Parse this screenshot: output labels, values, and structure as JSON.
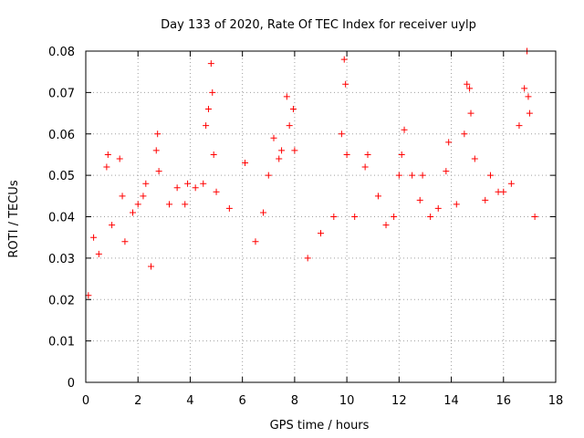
{
  "chart_data": {
    "type": "scatter",
    "title": "Day 133 of 2020, Rate Of TEC Index for receiver uylp",
    "xlabel": "GPS time / hours",
    "ylabel": "ROTI / TECUs",
    "xlim": [
      0,
      18
    ],
    "ylim": [
      0,
      0.08
    ],
    "x_ticks": [
      "0",
      "2",
      "4",
      "6",
      "8",
      "10",
      "12",
      "14",
      "16",
      "18"
    ],
    "y_ticks": [
      "0",
      "0.01",
      "0.02",
      "0.03",
      "0.04",
      "0.05",
      "0.06",
      "0.07",
      "0.08"
    ],
    "grid": true,
    "marker": "+",
    "color": "#ff0000",
    "series": [
      {
        "name": "ROTI",
        "x": [
          0.1,
          0.3,
          0.5,
          0.8,
          0.85,
          1.0,
          1.3,
          1.4,
          1.5,
          1.8,
          2.0,
          2.2,
          2.3,
          2.5,
          2.7,
          2.75,
          2.8,
          3.2,
          3.5,
          3.8,
          3.9,
          4.2,
          4.5,
          4.6,
          4.7,
          4.8,
          4.85,
          4.9,
          5.0,
          5.5,
          6.1,
          6.5,
          6.8,
          7.0,
          7.2,
          7.4,
          7.5,
          7.7,
          7.8,
          7.95,
          8.0,
          8.5,
          9.0,
          9.5,
          9.8,
          9.9,
          9.95,
          10.0,
          10.3,
          10.7,
          10.8,
          11.2,
          11.5,
          11.8,
          12.0,
          12.1,
          12.2,
          12.5,
          12.8,
          12.9,
          13.2,
          13.5,
          13.8,
          13.9,
          14.2,
          14.5,
          14.6,
          14.7,
          14.75,
          14.9,
          15.3,
          15.5,
          15.8,
          16.0,
          16.3,
          16.6,
          16.8,
          16.9,
          16.95,
          17.0,
          17.2
        ],
        "y": [
          0.021,
          0.035,
          0.031,
          0.052,
          0.055,
          0.038,
          0.054,
          0.045,
          0.034,
          0.041,
          0.043,
          0.045,
          0.048,
          0.028,
          0.056,
          0.06,
          0.051,
          0.043,
          0.047,
          0.043,
          0.048,
          0.047,
          0.048,
          0.062,
          0.066,
          0.077,
          0.07,
          0.055,
          0.046,
          0.042,
          0.053,
          0.034,
          0.041,
          0.05,
          0.059,
          0.054,
          0.056,
          0.069,
          0.062,
          0.066,
          0.056,
          0.03,
          0.036,
          0.04,
          0.06,
          0.078,
          0.072,
          0.055,
          0.04,
          0.052,
          0.055,
          0.045,
          0.038,
          0.04,
          0.05,
          0.055,
          0.061,
          0.05,
          0.044,
          0.05,
          0.04,
          0.042,
          0.051,
          0.058,
          0.043,
          0.06,
          0.072,
          0.071,
          0.065,
          0.054,
          0.044,
          0.05,
          0.046,
          0.046,
          0.048,
          0.062,
          0.071,
          0.08,
          0.069,
          0.065,
          0.04
        ]
      }
    ]
  }
}
